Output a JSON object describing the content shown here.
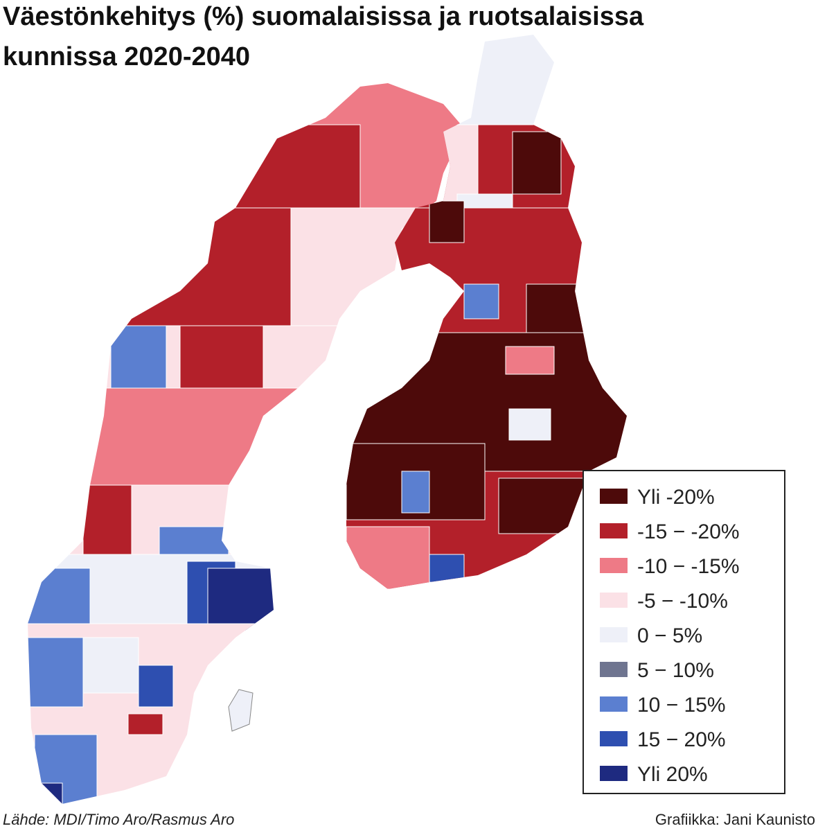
{
  "title": [
    "Väestönkehitys (%) suomalaisissa ja ruotsalaisissa",
    "kunnissa 2020-2040"
  ],
  "legend": {
    "items": [
      {
        "label": "Yli -20%",
        "color": "#4d0a0a"
      },
      {
        "label": "-15 − -20%",
        "color": "#b3202a"
      },
      {
        "label": "-10 − -15%",
        "color": "#ee7a86"
      },
      {
        "label": "-5 − -10%",
        "color": "#fbe1e6"
      },
      {
        "label": "0 − 5%",
        "color": "#eef0f8"
      },
      {
        "label": "5 − 10%",
        "color": "#6f7590"
      },
      {
        "label": "10 − 15%",
        "color": "#5b7fd0"
      },
      {
        "label": "15 − 20%",
        "color": "#2e4fb0"
      },
      {
        "label": "Yli 20%",
        "color": "#1e2a80"
      }
    ]
  },
  "source": "Lähde: MDI/Timo Aro/Rasmus Aro",
  "credit": "Grafiikka: Jani Kaunisto"
}
